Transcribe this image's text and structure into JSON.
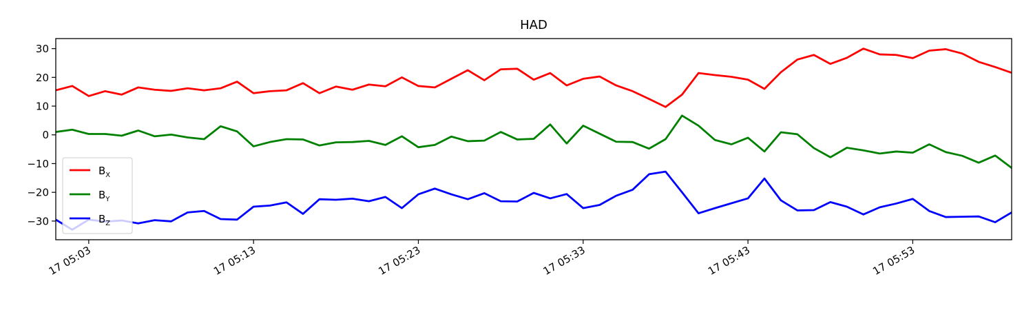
{
  "chart_data": {
    "type": "line",
    "title": "HAD",
    "xlabel": "",
    "ylabel": "",
    "xlim": [
      1.0,
      59.0
    ],
    "ylim": [
      -36.5,
      33.5
    ],
    "x_ticks": [
      {
        "value": 3,
        "label": "17 05:03"
      },
      {
        "value": 13,
        "label": "17 05:13"
      },
      {
        "value": 23,
        "label": "17 05:23"
      },
      {
        "value": 33,
        "label": "17 05:33"
      },
      {
        "value": 43,
        "label": "17 05:43"
      },
      {
        "value": 53,
        "label": "17 05:53"
      }
    ],
    "y_ticks": [
      {
        "value": 30,
        "label": "30"
      },
      {
        "value": 20,
        "label": "20"
      },
      {
        "value": 10,
        "label": "10"
      },
      {
        "value": 0,
        "label": "0"
      },
      {
        "value": -10,
        "label": "−10"
      },
      {
        "value": -20,
        "label": "−20"
      },
      {
        "value": -30,
        "label": "−30"
      }
    ],
    "grid": false,
    "legend_position": "lower-left",
    "x": [
      1,
      2,
      3,
      4,
      5,
      6,
      7,
      8,
      9,
      10,
      11,
      12,
      13,
      14,
      15,
      16,
      17,
      18,
      19,
      20,
      21,
      22,
      23,
      24,
      25,
      26,
      27,
      28,
      29,
      30,
      31,
      32,
      33,
      34,
      35,
      36,
      37,
      38,
      39,
      40,
      41,
      42,
      43,
      44,
      45,
      46,
      47,
      48,
      49,
      50,
      51,
      52,
      53,
      54,
      55,
      56,
      57,
      58,
      59
    ],
    "series": [
      {
        "name": "B",
        "subscript": "X",
        "color": "#ff0000",
        "values": [
          15.5,
          17.0,
          13.5,
          15.2,
          14.0,
          16.5,
          15.7,
          15.3,
          16.2,
          15.5,
          16.2,
          18.5,
          14.5,
          15.2,
          15.5,
          18.0,
          14.5,
          16.8,
          15.7,
          17.5,
          16.9,
          20.0,
          17.0,
          16.5,
          19.5,
          22.5,
          19.0,
          22.8,
          23.0,
          19.2,
          21.5,
          17.2,
          19.5,
          20.3,
          17.2,
          15.2,
          12.5,
          9.7,
          14.0,
          21.5,
          20.8,
          20.2,
          19.2,
          16.0,
          21.8,
          26.2,
          27.8,
          24.7,
          26.8,
          30.0,
          28.0,
          27.8,
          26.7,
          29.3,
          29.8,
          28.3,
          25.4,
          23.6,
          21.6
        ]
      },
      {
        "name": "B",
        "subscript": "Y",
        "color": "#008000",
        "values": [
          1.0,
          1.8,
          0.3,
          0.3,
          -0.3,
          1.5,
          -0.5,
          0.1,
          -0.9,
          -1.5,
          3.0,
          1.2,
          -4.0,
          -2.5,
          -1.5,
          -1.6,
          -3.7,
          -2.6,
          -2.5,
          -2.1,
          -3.5,
          -0.5,
          -4.3,
          -3.5,
          -0.6,
          -2.2,
          -2.0,
          1.0,
          -1.6,
          -1.4,
          3.6,
          -3.0,
          3.2,
          0.4,
          -2.4,
          -2.5,
          -4.8,
          -1.5,
          6.7,
          3.2,
          -1.8,
          -3.3,
          -1.0,
          -5.8,
          0.9,
          0.2,
          -4.6,
          -7.8,
          -4.5,
          -5.4,
          -6.5,
          -5.8,
          -6.2,
          -3.3,
          -6.0,
          -7.3,
          -9.7,
          -7.2,
          -11.5
        ]
      },
      {
        "name": "B",
        "subscript": "Z",
        "color": "#0000ff",
        "values": [
          -29.5,
          -33.0,
          -29.5,
          -30.2,
          -29.8,
          -30.8,
          -29.7,
          -30.1,
          -27.0,
          -26.5,
          -29.3,
          -29.5,
          -25.0,
          -24.6,
          -23.5,
          -27.5,
          -22.4,
          -22.6,
          -22.2,
          -23.1,
          -21.6,
          -25.5,
          -20.7,
          -18.7,
          -20.7,
          -22.4,
          -20.3,
          -23.1,
          -23.2,
          -20.2,
          -22.1,
          -20.6,
          -25.5,
          -24.4,
          -21.2,
          -19.1,
          -13.7,
          -12.8,
          -20.0,
          -27.3,
          -25.5,
          -23.8,
          -22.1,
          -15.2,
          -22.8,
          -26.3,
          -26.2,
          -23.4,
          -25.0,
          -27.7,
          -25.2,
          -23.9,
          -22.3,
          -26.5,
          -28.6,
          -28.5,
          -28.4,
          -30.4,
          -27.0
        ]
      }
    ]
  }
}
